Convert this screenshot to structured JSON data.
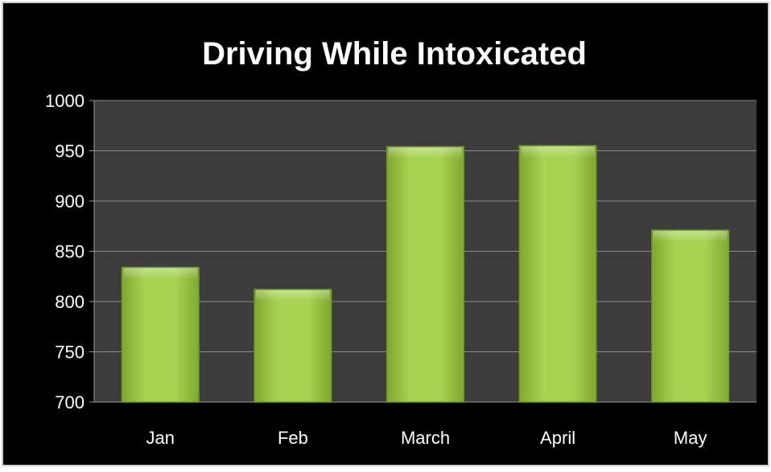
{
  "chart_data": {
    "type": "bar",
    "title": "Driving While Intoxicated",
    "categories": [
      "Jan",
      "Feb",
      "March",
      "April",
      "May"
    ],
    "values": [
      834,
      812,
      954,
      955,
      871
    ],
    "ylim": [
      700,
      1000
    ],
    "yticks": [
      700,
      750,
      800,
      850,
      900,
      950,
      1000
    ],
    "grid": true,
    "legend": "none"
  },
  "colors": {
    "frame": "#000000",
    "plot_area": "#3c3c3c",
    "gridline": "#8c8c8c",
    "text": "#ffffff",
    "bar_light": "#b6dc66",
    "bar_mid": "#9acd45",
    "bar_dark": "#6f9a25"
  }
}
